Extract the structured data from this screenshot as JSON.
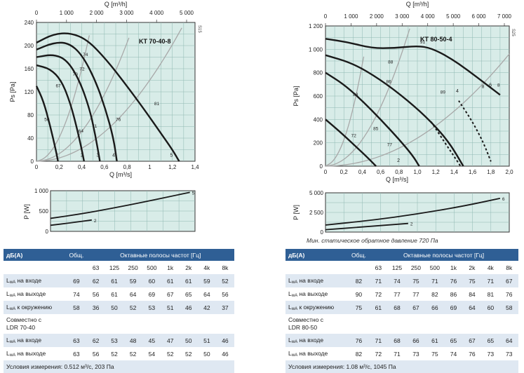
{
  "chart_data": [
    {
      "type": "line",
      "title": "KT 70-40-8",
      "side_label": "S15",
      "xlabel": "Q [m³/s]",
      "x2label": "Q [m³/h]",
      "ylabel": "Ps [Pa]",
      "xlim": [
        0,
        1.4
      ],
      "ylim": [
        0,
        240
      ],
      "x_ticks": [
        "0",
        "0,2",
        "0,4",
        "0,6",
        "0,8",
        "1",
        "1,2",
        "1,4"
      ],
      "y_ticks": [
        "0",
        "40",
        "80",
        "120",
        "160",
        "200",
        "240"
      ],
      "x2_ticks": [
        "0",
        "1 000",
        "2 000",
        "3 000",
        "4 000",
        "5 000"
      ],
      "curve_labels": [
        "1",
        "2",
        "3",
        "4",
        "5"
      ],
      "efficiency_labels": [
        "50",
        "64",
        "67",
        "70",
        "71",
        "72",
        "74",
        "76",
        "81"
      ],
      "series": [
        {
          "points": [
            [
              0,
              130
            ],
            [
              0.06,
              105
            ],
            [
              0.12,
              62
            ],
            [
              0.17,
              20
            ],
            [
              0.19,
              0
            ]
          ]
        },
        {
          "points": [
            [
              0,
              166
            ],
            [
              0.12,
              160
            ],
            [
              0.22,
              140
            ],
            [
              0.3,
              100
            ],
            [
              0.36,
              55
            ],
            [
              0.4,
              20
            ],
            [
              0.42,
              0
            ]
          ]
        },
        {
          "points": [
            [
              0,
              180
            ],
            [
              0.15,
              185
            ],
            [
              0.27,
              175
            ],
            [
              0.38,
              140
            ],
            [
              0.47,
              90
            ],
            [
              0.52,
              45
            ],
            [
              0.56,
              0
            ]
          ]
        },
        {
          "points": [
            [
              0,
              193
            ],
            [
              0.15,
              205
            ],
            [
              0.28,
              205
            ],
            [
              0.4,
              185
            ],
            [
              0.52,
              140
            ],
            [
              0.61,
              90
            ],
            [
              0.68,
              40
            ],
            [
              0.71,
              0
            ]
          ]
        },
        {
          "points": [
            [
              0,
              205
            ],
            [
              0.15,
              220
            ],
            [
              0.3,
              222
            ],
            [
              0.45,
              210
            ],
            [
              0.62,
              175
            ],
            [
              0.78,
              135
            ],
            [
              0.95,
              90
            ],
            [
              1.1,
              48
            ],
            [
              1.2,
              20
            ],
            [
              1.26,
              0
            ]
          ]
        }
      ]
    },
    {
      "type": "line",
      "ylabel": "P [W]",
      "xlim": [
        0,
        1.4
      ],
      "ylim": [
        0,
        1000
      ],
      "y_ticks": [
        "0",
        "500",
        "1 000"
      ],
      "series": [
        {
          "name": "2",
          "points": [
            [
              0,
              150
            ],
            [
              0.2,
              210
            ],
            [
              0.4,
              280
            ]
          ]
        },
        {
          "name": "5",
          "points": [
            [
              0,
              320
            ],
            [
              0.3,
              430
            ],
            [
              0.6,
              570
            ],
            [
              0.9,
              720
            ],
            [
              1.2,
              880
            ],
            [
              1.35,
              960
            ]
          ]
        }
      ]
    },
    {
      "type": "line",
      "title": "KT 80-50-4",
      "side_label": "S25",
      "xlabel": "Q [m³/s]",
      "x2label": "Q [m³/h]",
      "ylabel": "Ps [Pa]",
      "xlim": [
        0,
        2.0
      ],
      "ylim": [
        0,
        1200
      ],
      "x_ticks": [
        "0",
        "0,2",
        "0,4",
        "0,6",
        "0,8",
        "1,0",
        "1,2",
        "1,4",
        "1,6",
        "1,8",
        "2,0"
      ],
      "y_ticks": [
        "0",
        "200",
        "400",
        "600",
        "800",
        "1 000",
        "1 200"
      ],
      "x2_ticks": [
        "0",
        "1 000",
        "2 000",
        "3 000",
        "4 000",
        "5 000",
        "6 000",
        "7 000"
      ],
      "curve_labels": [
        "2",
        "4",
        "6"
      ],
      "efficiency_labels": [
        "72",
        "77",
        "83",
        "85",
        "86",
        "88",
        "89",
        "91",
        "8",
        "8"
      ],
      "series": [
        {
          "points": [
            [
              0,
              400
            ],
            [
              0.15,
              300
            ],
            [
              0.3,
              190
            ],
            [
              0.45,
              80
            ],
            [
              0.55,
              0
            ]
          ]
        },
        {
          "points": [
            [
              0,
              800
            ],
            [
              0.2,
              700
            ],
            [
              0.4,
              560
            ],
            [
              0.6,
              400
            ],
            [
              0.8,
              230
            ],
            [
              0.95,
              90
            ],
            [
              1.02,
              0
            ]
          ]
        },
        {
          "points": [
            [
              0,
              950
            ],
            [
              0.3,
              880
            ],
            [
              0.6,
              740
            ],
            [
              0.9,
              560
            ],
            [
              1.15,
              380
            ],
            [
              1.35,
              200
            ],
            [
              1.5,
              0
            ]
          ]
        },
        {
          "points": [
            [
              0,
              1090
            ],
            [
              0.25,
              1060
            ],
            [
              0.5,
              1010
            ],
            [
              0.75,
              1010
            ],
            [
              1.0,
              1030
            ],
            [
              1.15,
              1010
            ],
            [
              1.35,
              930
            ],
            [
              1.55,
              820
            ],
            [
              1.75,
              700
            ],
            [
              1.9,
              610
            ]
          ]
        }
      ]
    },
    {
      "type": "line",
      "ylabel": "P [W]",
      "xlim": [
        0,
        2.0
      ],
      "ylim": [
        0,
        5000
      ],
      "y_ticks": [
        "0",
        "2 500",
        "5 000"
      ],
      "series": [
        {
          "name": "2",
          "points": [
            [
              0,
              300
            ],
            [
              0.4,
              650
            ],
            [
              0.9,
              1100
            ]
          ]
        },
        {
          "name": "6",
          "points": [
            [
              0,
              900
            ],
            [
              0.5,
              1500
            ],
            [
              1.0,
              2300
            ],
            [
              1.5,
              3300
            ],
            [
              1.9,
              4300
            ]
          ]
        }
      ]
    }
  ],
  "caption_right": "Мин. статическое обратное давление 720 Па",
  "table_left": {
    "label_header": "дБ(A)",
    "total_header": "Общ.",
    "bands_header": "Октавные полосы частот [Гц]",
    "frequencies": [
      "63",
      "125",
      "250",
      "500",
      "1k",
      "2k",
      "4k",
      "8k"
    ],
    "rows": [
      {
        "label_main": "L",
        "label_sub": "wA",
        "label_rest": " на входе",
        "total": "69",
        "values": [
          "62",
          "61",
          "59",
          "60",
          "61",
          "61",
          "59",
          "52"
        ]
      },
      {
        "label_main": "L",
        "label_sub": "wA",
        "label_rest": " на выходе",
        "total": "74",
        "values": [
          "56",
          "61",
          "64",
          "69",
          "67",
          "65",
          "64",
          "56"
        ]
      },
      {
        "label_main": "L",
        "label_sub": "wA",
        "label_rest": " к окружению",
        "total": "58",
        "values": [
          "36",
          "50",
          "52",
          "53",
          "51",
          "46",
          "42",
          "37"
        ]
      }
    ],
    "compat_line1": "Совместно с",
    "compat_line2": "LDR 70-40",
    "compat_rows": [
      {
        "label_main": "L",
        "label_sub": "wA",
        "label_rest": " на входе",
        "total": "63",
        "values": [
          "62",
          "53",
          "48",
          "45",
          "47",
          "50",
          "51",
          "46"
        ]
      },
      {
        "label_main": "L",
        "label_sub": "wA",
        "label_rest": " на выходе",
        "total": "63",
        "values": [
          "56",
          "52",
          "52",
          "54",
          "52",
          "52",
          "50",
          "46"
        ]
      }
    ],
    "conditions": "Условия измерения: 0.512 м³/с, 203 Па"
  },
  "table_right": {
    "label_header": "дБ(A)",
    "total_header": "Общ.",
    "bands_header": "Октавные полосы частот [Гц]",
    "frequencies": [
      "63",
      "125",
      "250",
      "500",
      "1k",
      "2k",
      "4k",
      "8k"
    ],
    "rows": [
      {
        "label_main": "L",
        "label_sub": "wA",
        "label_rest": " на входе",
        "total": "82",
        "values": [
          "71",
          "74",
          "75",
          "71",
          "76",
          "75",
          "71",
          "67"
        ]
      },
      {
        "label_main": "L",
        "label_sub": "wA",
        "label_rest": " на выходе",
        "total": "90",
        "values": [
          "72",
          "77",
          "77",
          "82",
          "86",
          "84",
          "81",
          "76"
        ]
      },
      {
        "label_main": "L",
        "label_sub": "wA",
        "label_rest": " к окружению",
        "total": "75",
        "values": [
          "61",
          "68",
          "67",
          "66",
          "69",
          "64",
          "60",
          "58"
        ]
      }
    ],
    "compat_line1": "Совместно с",
    "compat_line2": "LDR 80-50",
    "compat_rows": [
      {
        "label_main": "L",
        "label_sub": "wA",
        "label_rest": " на входе",
        "total": "76",
        "values": [
          "71",
          "68",
          "66",
          "61",
          "65",
          "67",
          "65",
          "64"
        ]
      },
      {
        "label_main": "L",
        "label_sub": "wA",
        "label_rest": " на выходе",
        "total": "82",
        "values": [
          "72",
          "71",
          "73",
          "75",
          "74",
          "76",
          "73",
          "73"
        ]
      }
    ],
    "conditions": "Условия измерения: 1.08 м³/с, 1045 Па"
  },
  "colors": {
    "plot_bg": "#d8ece8",
    "grid": "#8fb8b2",
    "curve": "#1a1a1a",
    "system_curve": "#a8a8a8",
    "header_bg": "#2f5f95",
    "row_shade": "#dfe8f2"
  }
}
